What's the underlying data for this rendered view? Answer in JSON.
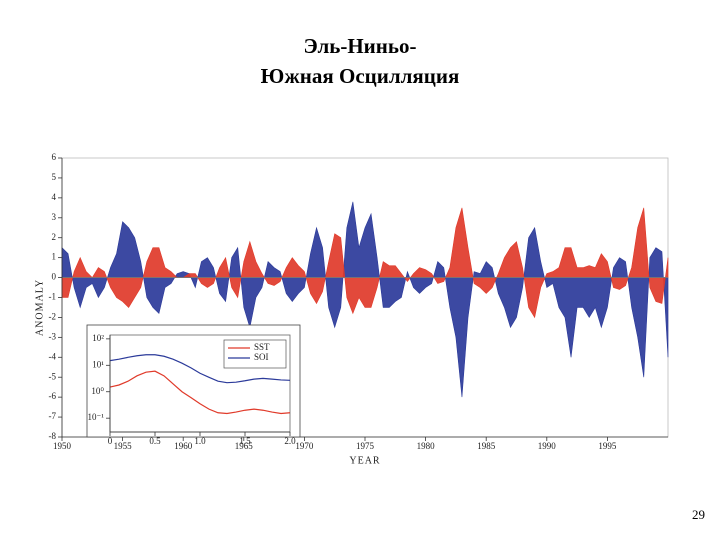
{
  "slide": {
    "title": [
      "Эль-Ниньо-",
      "Южная Осцилляция"
    ],
    "page_number": "29"
  },
  "chart_data": [
    {
      "type": "area",
      "x_label": "YEAR",
      "y_label": "ANOMALY",
      "x": [
        1950,
        1950.5,
        1951,
        1951.5,
        1952,
        1952.5,
        1953,
        1953.5,
        1954,
        1954.5,
        1955,
        1955.5,
        1956,
        1956.5,
        1957,
        1957.5,
        1958,
        1958.5,
        1959,
        1959.5,
        1960,
        1960.5,
        1961,
        1961.5,
        1962,
        1962.5,
        1963,
        1963.5,
        1964,
        1964.5,
        1965,
        1965.5,
        1966,
        1966.5,
        1967,
        1967.5,
        1968,
        1968.5,
        1969,
        1969.5,
        1970,
        1970.5,
        1971,
        1971.5,
        1972,
        1972.5,
        1973,
        1973.5,
        1974,
        1974.5,
        1975,
        1975.5,
        1976,
        1976.5,
        1977,
        1977.5,
        1978,
        1978.5,
        1979,
        1979.5,
        1980,
        1980.5,
        1981,
        1981.5,
        1982,
        1982.5,
        1983,
        1983.5,
        1984,
        1984.5,
        1985,
        1985.5,
        1986,
        1986.5,
        1987,
        1987.5,
        1988,
        1988.5,
        1989,
        1989.5,
        1990,
        1990.5,
        1991,
        1991.5,
        1992,
        1992.5,
        1993,
        1993.5,
        1994,
        1994.5,
        1995,
        1995.5,
        1996,
        1996.5,
        1997,
        1997.5,
        1998,
        1998.5,
        1999,
        1999.5,
        2000
      ],
      "series": [
        {
          "color": "#2b3a9a",
          "values": [
            1.5,
            1.2,
            -0.5,
            -1.5,
            -0.5,
            -0.3,
            -1,
            -0.5,
            0.5,
            1.2,
            2.8,
            2.5,
            2,
            0.8,
            -1,
            -1.5,
            -1.8,
            -0.5,
            -0.3,
            0.2,
            0.3,
            0.2,
            -0.5,
            0.8,
            1,
            0.5,
            -0.8,
            -1.2,
            1,
            1.5,
            -1.5,
            -2.5,
            -1,
            -0.5,
            0.8,
            0.5,
            0.3,
            -0.8,
            -1.2,
            -0.8,
            -0.5,
            1.2,
            2.5,
            1.5,
            -1.5,
            -2.5,
            -1.5,
            2.5,
            3.8,
            1.5,
            2.5,
            3.2,
            1,
            -1.5,
            -1.5,
            -1.2,
            -1,
            0.3,
            -0.5,
            -0.8,
            -0.5,
            -0.3,
            0.8,
            0.5,
            -1.5,
            -3,
            -6,
            -2,
            0.3,
            0.2,
            0.8,
            0.5,
            -0.8,
            -1.5,
            -2.5,
            -2,
            -0.5,
            2,
            2.5,
            0.8,
            -0.5,
            -0.3,
            -1.5,
            -2,
            -4,
            -1.5,
            -1.5,
            -2,
            -1.5,
            -2.5,
            -1.5,
            0.5,
            1,
            0.8,
            -1.5,
            -3,
            -5,
            1,
            1.5,
            1.3,
            -4
          ]
        },
        {
          "color": "#e03a2a",
          "values": [
            -1,
            -1,
            0.3,
            1,
            0.3,
            0,
            0.5,
            0.3,
            -0.5,
            -1,
            -1.2,
            -1.5,
            -1,
            -0.5,
            0.8,
            1.5,
            1.5,
            0.5,
            0.3,
            0,
            0,
            0.2,
            0.2,
            -0.3,
            -0.5,
            -0.3,
            0.5,
            1,
            -0.5,
            -1,
            0.8,
            1.8,
            0.8,
            0.2,
            -0.3,
            -0.4,
            -0.2,
            0.5,
            1,
            0.6,
            0.3,
            -0.8,
            -1.3,
            -0.7,
            0.8,
            2.2,
            2,
            -1,
            -1.8,
            -1,
            -1.5,
            -1.5,
            -0.5,
            0.8,
            0.6,
            0.6,
            0.2,
            -0.2,
            0.2,
            0.5,
            0.4,
            0.2,
            -0.3,
            -0.2,
            0.5,
            2.5,
            3.5,
            1.5,
            -0.3,
            -0.5,
            -0.8,
            -0.5,
            0.2,
            1,
            1.5,
            1.8,
            0.5,
            -1.5,
            -2,
            -0.5,
            0.2,
            0.3,
            0.5,
            1.5,
            1.5,
            0.5,
            0.5,
            0.6,
            0.5,
            1.2,
            0.8,
            -0.5,
            -0.6,
            -0.4,
            0.5,
            2.5,
            3.5,
            -0.5,
            -1.2,
            -1.3,
            1
          ]
        }
      ],
      "xlim": [
        1950,
        2000
      ],
      "xticks": [
        1950,
        1955,
        1960,
        1965,
        1970,
        1975,
        1980,
        1985,
        1990,
        1995
      ],
      "ylim": [
        -8,
        6
      ],
      "yticks": [
        -8,
        -7,
        -6,
        -5,
        -4,
        -3,
        -2,
        -1,
        0,
        1,
        2,
        3,
        4,
        5,
        6
      ]
    },
    {
      "type": "line",
      "log_y": true,
      "legend": "upper-right",
      "x": [
        0,
        0.1,
        0.2,
        0.3,
        0.4,
        0.5,
        0.6,
        0.7,
        0.8,
        0.9,
        1,
        1.1,
        1.2,
        1.3,
        1.4,
        1.5,
        1.6,
        1.7,
        1.8,
        1.9,
        2
      ],
      "series": [
        {
          "name": "SST",
          "color": "#e03a2a",
          "values": [
            1.5,
            1.8,
            2.5,
            4,
            5.5,
            6,
            4,
            2,
            1,
            0.6,
            0.35,
            0.22,
            0.16,
            0.15,
            0.17,
            0.2,
            0.22,
            0.2,
            0.17,
            0.15,
            0.16
          ]
        },
        {
          "name": "SOI",
          "color": "#2b3a9a",
          "values": [
            15,
            17,
            20,
            23,
            25,
            25,
            22,
            17,
            12,
            8,
            5,
            3.5,
            2.5,
            2.2,
            2.3,
            2.6,
            3,
            3.2,
            3,
            2.8,
            2.7
          ]
        }
      ],
      "xlim": [
        0,
        2
      ],
      "xticks": [
        0,
        0.5,
        {
          "value": 1,
          "label": "1.0"
        },
        1.5,
        {
          "value": 2,
          "label": "2.0"
        }
      ],
      "ylim": [
        0.03,
        140
      ],
      "yticks": [
        {
          "value": 100,
          "label": "10²"
        },
        {
          "value": 10,
          "label": "10¹"
        },
        {
          "value": 1,
          "label": "10⁰"
        },
        {
          "value": 0.1,
          "label": "10⁻¹"
        }
      ]
    }
  ]
}
